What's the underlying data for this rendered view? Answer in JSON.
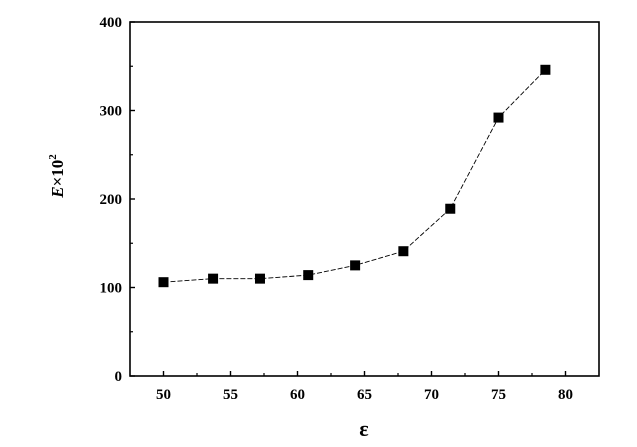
{
  "chart_data": {
    "type": "line",
    "xlabel": "ε",
    "ylabel": {
      "base": "E",
      "suffix": "×10",
      "exponent": "2"
    },
    "xlim": [
      47.5,
      82.5
    ],
    "ylim": [
      0,
      400
    ],
    "x_ticks": [
      50,
      55,
      60,
      65,
      70,
      75,
      80
    ],
    "y_ticks": [
      0,
      100,
      200,
      300,
      400
    ],
    "grid": false,
    "marker": "square",
    "series": [
      {
        "x": [
          50.0,
          53.7,
          57.2,
          60.8,
          64.3,
          67.9,
          71.4,
          75.0,
          78.5
        ],
        "values": [
          106,
          110,
          110,
          114,
          125,
          141,
          189,
          292,
          346
        ]
      }
    ]
  }
}
